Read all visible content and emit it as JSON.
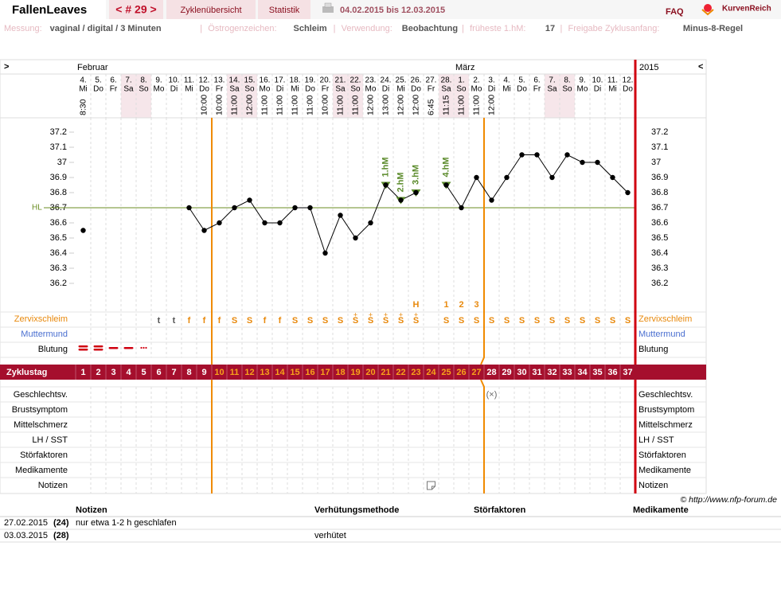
{
  "header": {
    "app": "FallenLeaves",
    "cycle_nav": "< # 29 >",
    "tabs": [
      "Zyklenübersicht",
      "Statistik"
    ],
    "range": "04.02.2015 bis 12.03.2015",
    "faq": "FAQ",
    "brand": "KurvenReich"
  },
  "info": {
    "separator": "|",
    "items": [
      {
        "label": "Messung:",
        "value": "vaginal / digital / 3 Minuten"
      },
      {
        "label": "Östrogenzeichen:",
        "value": "Schleim"
      },
      {
        "label": "Verwendung:",
        "value": "Beobachtung"
      },
      {
        "label": "früheste 1.hM:",
        "value": "17"
      },
      {
        "label": "Freigabe Zyklusanfang:",
        "value": "Minus-8-Regel"
      }
    ]
  },
  "chart_data": {
    "type": "line",
    "nav_left": ">",
    "nav_right": "<",
    "months": [
      {
        "name": "Februar",
        "start": 0
      },
      {
        "name": "März",
        "start": 25
      }
    ],
    "year": "2015",
    "categories": [
      "4.",
      "5.",
      "6.",
      "7.",
      "8.",
      "9.",
      "10.",
      "11.",
      "12.",
      "13.",
      "14.",
      "15.",
      "16.",
      "17.",
      "18.",
      "19.",
      "20.",
      "21.",
      "22.",
      "23.",
      "24.",
      "25.",
      "26.",
      "27.",
      "28.",
      "1.",
      "2.",
      "3.",
      "4.",
      "5.",
      "6.",
      "7.",
      "8.",
      "9.",
      "10.",
      "11.",
      "12."
    ],
    "weekdays": [
      "Mi",
      "Do",
      "Fr",
      "Sa",
      "So",
      "Mo",
      "Di",
      "Mi",
      "Do",
      "Fr",
      "Sa",
      "So",
      "Mo",
      "Di",
      "Mi",
      "Do",
      "Fr",
      "Sa",
      "So",
      "Mo",
      "Di",
      "Mi",
      "Do",
      "Fr",
      "Sa",
      "So",
      "Mo",
      "Di",
      "Mi",
      "Do",
      "Fr",
      "Sa",
      "So",
      "Mo",
      "Di",
      "Mi",
      "Do"
    ],
    "times": [
      "8:30",
      null,
      null,
      null,
      null,
      null,
      null,
      null,
      "10:00",
      "10:00",
      "11:00",
      "12:00",
      "11:00",
      "11:00",
      "11:00",
      "11:00",
      "10:00",
      "11:00",
      "11:00",
      "12:00",
      "13:00",
      "12:00",
      "12:00",
      "6:45",
      "11:15",
      "11:00",
      "11:00",
      "12:00",
      null,
      null,
      null,
      null,
      null,
      null,
      null,
      null,
      null
    ],
    "values": [
      36.55,
      null,
      null,
      null,
      null,
      null,
      null,
      36.7,
      36.55,
      36.6,
      36.7,
      36.75,
      36.6,
      36.6,
      36.7,
      36.7,
      36.4,
      36.65,
      36.5,
      36.6,
      36.85,
      36.75,
      36.8,
      null,
      36.85,
      36.7,
      36.9,
      36.75,
      36.9,
      37.05,
      37.05,
      36.9,
      37.05,
      37,
      37,
      36.9,
      36.8
    ],
    "hm_labels": [
      null,
      null,
      null,
      null,
      null,
      null,
      null,
      null,
      null,
      null,
      null,
      null,
      null,
      null,
      null,
      null,
      null,
      null,
      null,
      null,
      "1.hM",
      "2.hM",
      "3.hM",
      null,
      "4.hM",
      null,
      null,
      null,
      null,
      null,
      null,
      null,
      null,
      null,
      null,
      null,
      null
    ],
    "color": "#000000",
    "hl": 36.7,
    "hl_label": "HL",
    "hl_color": "#6b8e23",
    "ylim": [
      36.2,
      37.2
    ],
    "yticks": [
      37.2,
      37.1,
      37,
      36.9,
      36.8,
      36.7,
      36.6,
      36.5,
      36.4,
      36.3,
      36.2
    ]
  },
  "rows": {
    "cervix": {
      "label": "Zervixschleim",
      "symbols": [
        null,
        null,
        null,
        null,
        null,
        "t",
        "t",
        "f",
        "f",
        "f",
        "S",
        "S",
        "f",
        "f",
        "S",
        "S",
        "S",
        "S",
        "S",
        "S",
        "S",
        "S",
        "S",
        null,
        "S",
        "S",
        "S",
        "S",
        "S",
        "S",
        "S",
        "S",
        "S",
        "S",
        "S",
        "S",
        "S"
      ],
      "plus": [
        null,
        null,
        null,
        null,
        null,
        null,
        null,
        null,
        null,
        null,
        null,
        null,
        null,
        null,
        null,
        null,
        null,
        null,
        "+",
        "+",
        "+",
        "+",
        "+",
        null,
        null,
        null,
        null,
        null,
        null,
        null,
        null,
        null,
        null,
        null,
        null,
        null,
        null
      ],
      "above": [
        null,
        null,
        null,
        null,
        null,
        null,
        null,
        null,
        null,
        null,
        null,
        null,
        null,
        null,
        null,
        null,
        null,
        null,
        null,
        null,
        null,
        null,
        "H",
        null,
        "1",
        "2",
        "3",
        null,
        null,
        null,
        null,
        null,
        null,
        null,
        null,
        null,
        null
      ]
    },
    "cervix_pos": {
      "label": "Muttermund"
    },
    "bleeding": {
      "label": "Blutung"
    },
    "cycle_day": {
      "label": "Zyklustag",
      "values": [
        1,
        2,
        3,
        4,
        5,
        6,
        7,
        8,
        9,
        10,
        11,
        12,
        13,
        14,
        15,
        16,
        17,
        18,
        19,
        20,
        21,
        22,
        23,
        24,
        25,
        26,
        27,
        28,
        29,
        30,
        31,
        32,
        33,
        34,
        35,
        36,
        37
      ]
    },
    "lower": [
      {
        "label": "Geschlechtsv.",
        "symbols": [
          null,
          null,
          null,
          null,
          null,
          null,
          null,
          null,
          null,
          null,
          null,
          null,
          null,
          null,
          null,
          null,
          null,
          null,
          null,
          null,
          null,
          null,
          null,
          null,
          null,
          null,
          null,
          "(×)",
          null,
          null,
          null,
          null,
          null,
          null,
          null,
          null,
          null
        ]
      },
      {
        "label": "Brustsymptom"
      },
      {
        "label": "Mittelschmerz"
      },
      {
        "label": "LH / SST"
      },
      {
        "label": "Störfaktoren"
      },
      {
        "label": "Medikamente"
      },
      {
        "label": "Notizen"
      }
    ]
  },
  "copyright": "© http://www.nfp-forum.de",
  "notes": {
    "headers": [
      "Notizen",
      "Verhütungsmethode",
      "Störfaktoren",
      "Medikamente"
    ],
    "rows": [
      [
        "27.02.2015",
        "(24)",
        "nur etwa 1-2 h geschlafen",
        null,
        null,
        null
      ],
      [
        "03.03.2015",
        "(28)",
        null,
        "verhütet",
        null,
        null
      ]
    ]
  }
}
